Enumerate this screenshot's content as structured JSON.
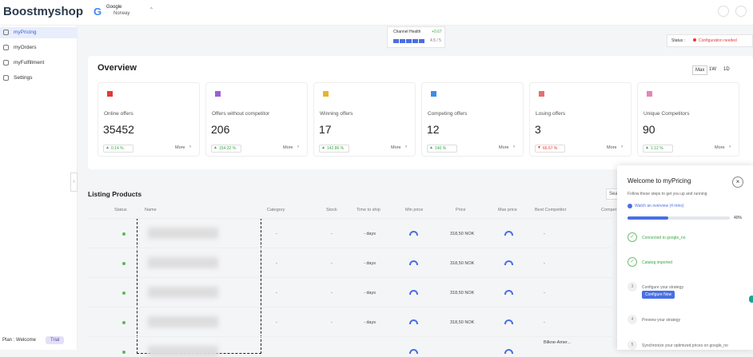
{
  "header": {
    "logo": "Boostmyshop",
    "channel": "Google",
    "country": "Norway"
  },
  "sidebar": {
    "items": [
      "myPricing",
      "myOrders",
      "myFulfillment",
      "Settings"
    ],
    "plan": "Plan : Welcome",
    "plan_badge": "Trial"
  },
  "health": {
    "label": "Channel Health",
    "delta": "+0.67",
    "score": "4.5 / 5"
  },
  "status": {
    "label": "Status :",
    "value": "Configuration needed"
  },
  "overview": {
    "title": "Overview",
    "ranges": [
      "Max",
      "1W",
      "1D"
    ],
    "more": "More",
    "cards": [
      {
        "label": "Online offers",
        "value": 35452,
        "change": "0.14 %",
        "trend": "up"
      },
      {
        "label": "Offers without competitor",
        "value": 206,
        "change": "154.32 %",
        "trend": "up"
      },
      {
        "label": "Winning offers",
        "value": 17,
        "change": "142.86 %",
        "trend": "up"
      },
      {
        "label": "Competing offers",
        "value": 12,
        "change": "140 %",
        "trend": "up"
      },
      {
        "label": "Losing offers",
        "value": 3,
        "change": "66.67 %",
        "trend": "down"
      },
      {
        "label": "Unique Competitors",
        "value": 90,
        "change": "1.12 %",
        "trend": "up"
      }
    ]
  },
  "listing": {
    "title": "Listing Products",
    "search": "Sea",
    "columns": [
      "Status",
      "Name",
      "Category",
      "Stock",
      "Time to ship",
      "Min price",
      "Price",
      "Max price",
      "Best Competitor",
      "Compet"
    ],
    "rows": [
      {
        "category": "-",
        "stock": "-",
        "time_to_ship": "- days",
        "price": "318,50 NOK",
        "best_competitor": "-"
      },
      {
        "category": "-",
        "stock": "-",
        "time_to_ship": "- days",
        "price": "318,50 NOK",
        "best_competitor": "-"
      },
      {
        "category": "-",
        "stock": "-",
        "time_to_ship": "- days",
        "price": "318,50 NOK",
        "best_competitor": "-"
      },
      {
        "category": "-",
        "stock": "-",
        "time_to_ship": "- days",
        "price": "318,50 NOK",
        "best_competitor": "-"
      },
      {
        "best_competitor": "Bilkne-Amer..."
      }
    ]
  },
  "welcome": {
    "title": "Welcome to myPricing",
    "subtitle": "Follow these steps to get you up and running",
    "video": "Watch an overview (4 mins)",
    "progress": {
      "value": 40,
      "label": "40%"
    },
    "steps": [
      {
        "text": "Connected to google_no",
        "done": true
      },
      {
        "text": "Catalog imported",
        "done": true
      },
      {
        "number": "3",
        "text": "Configure your strategy",
        "button": "Configure Now"
      },
      {
        "number": "4",
        "text": "Preview your strategy"
      },
      {
        "number": "5",
        "text": "Synchronize your optimized prices on google_no"
      }
    ]
  }
}
